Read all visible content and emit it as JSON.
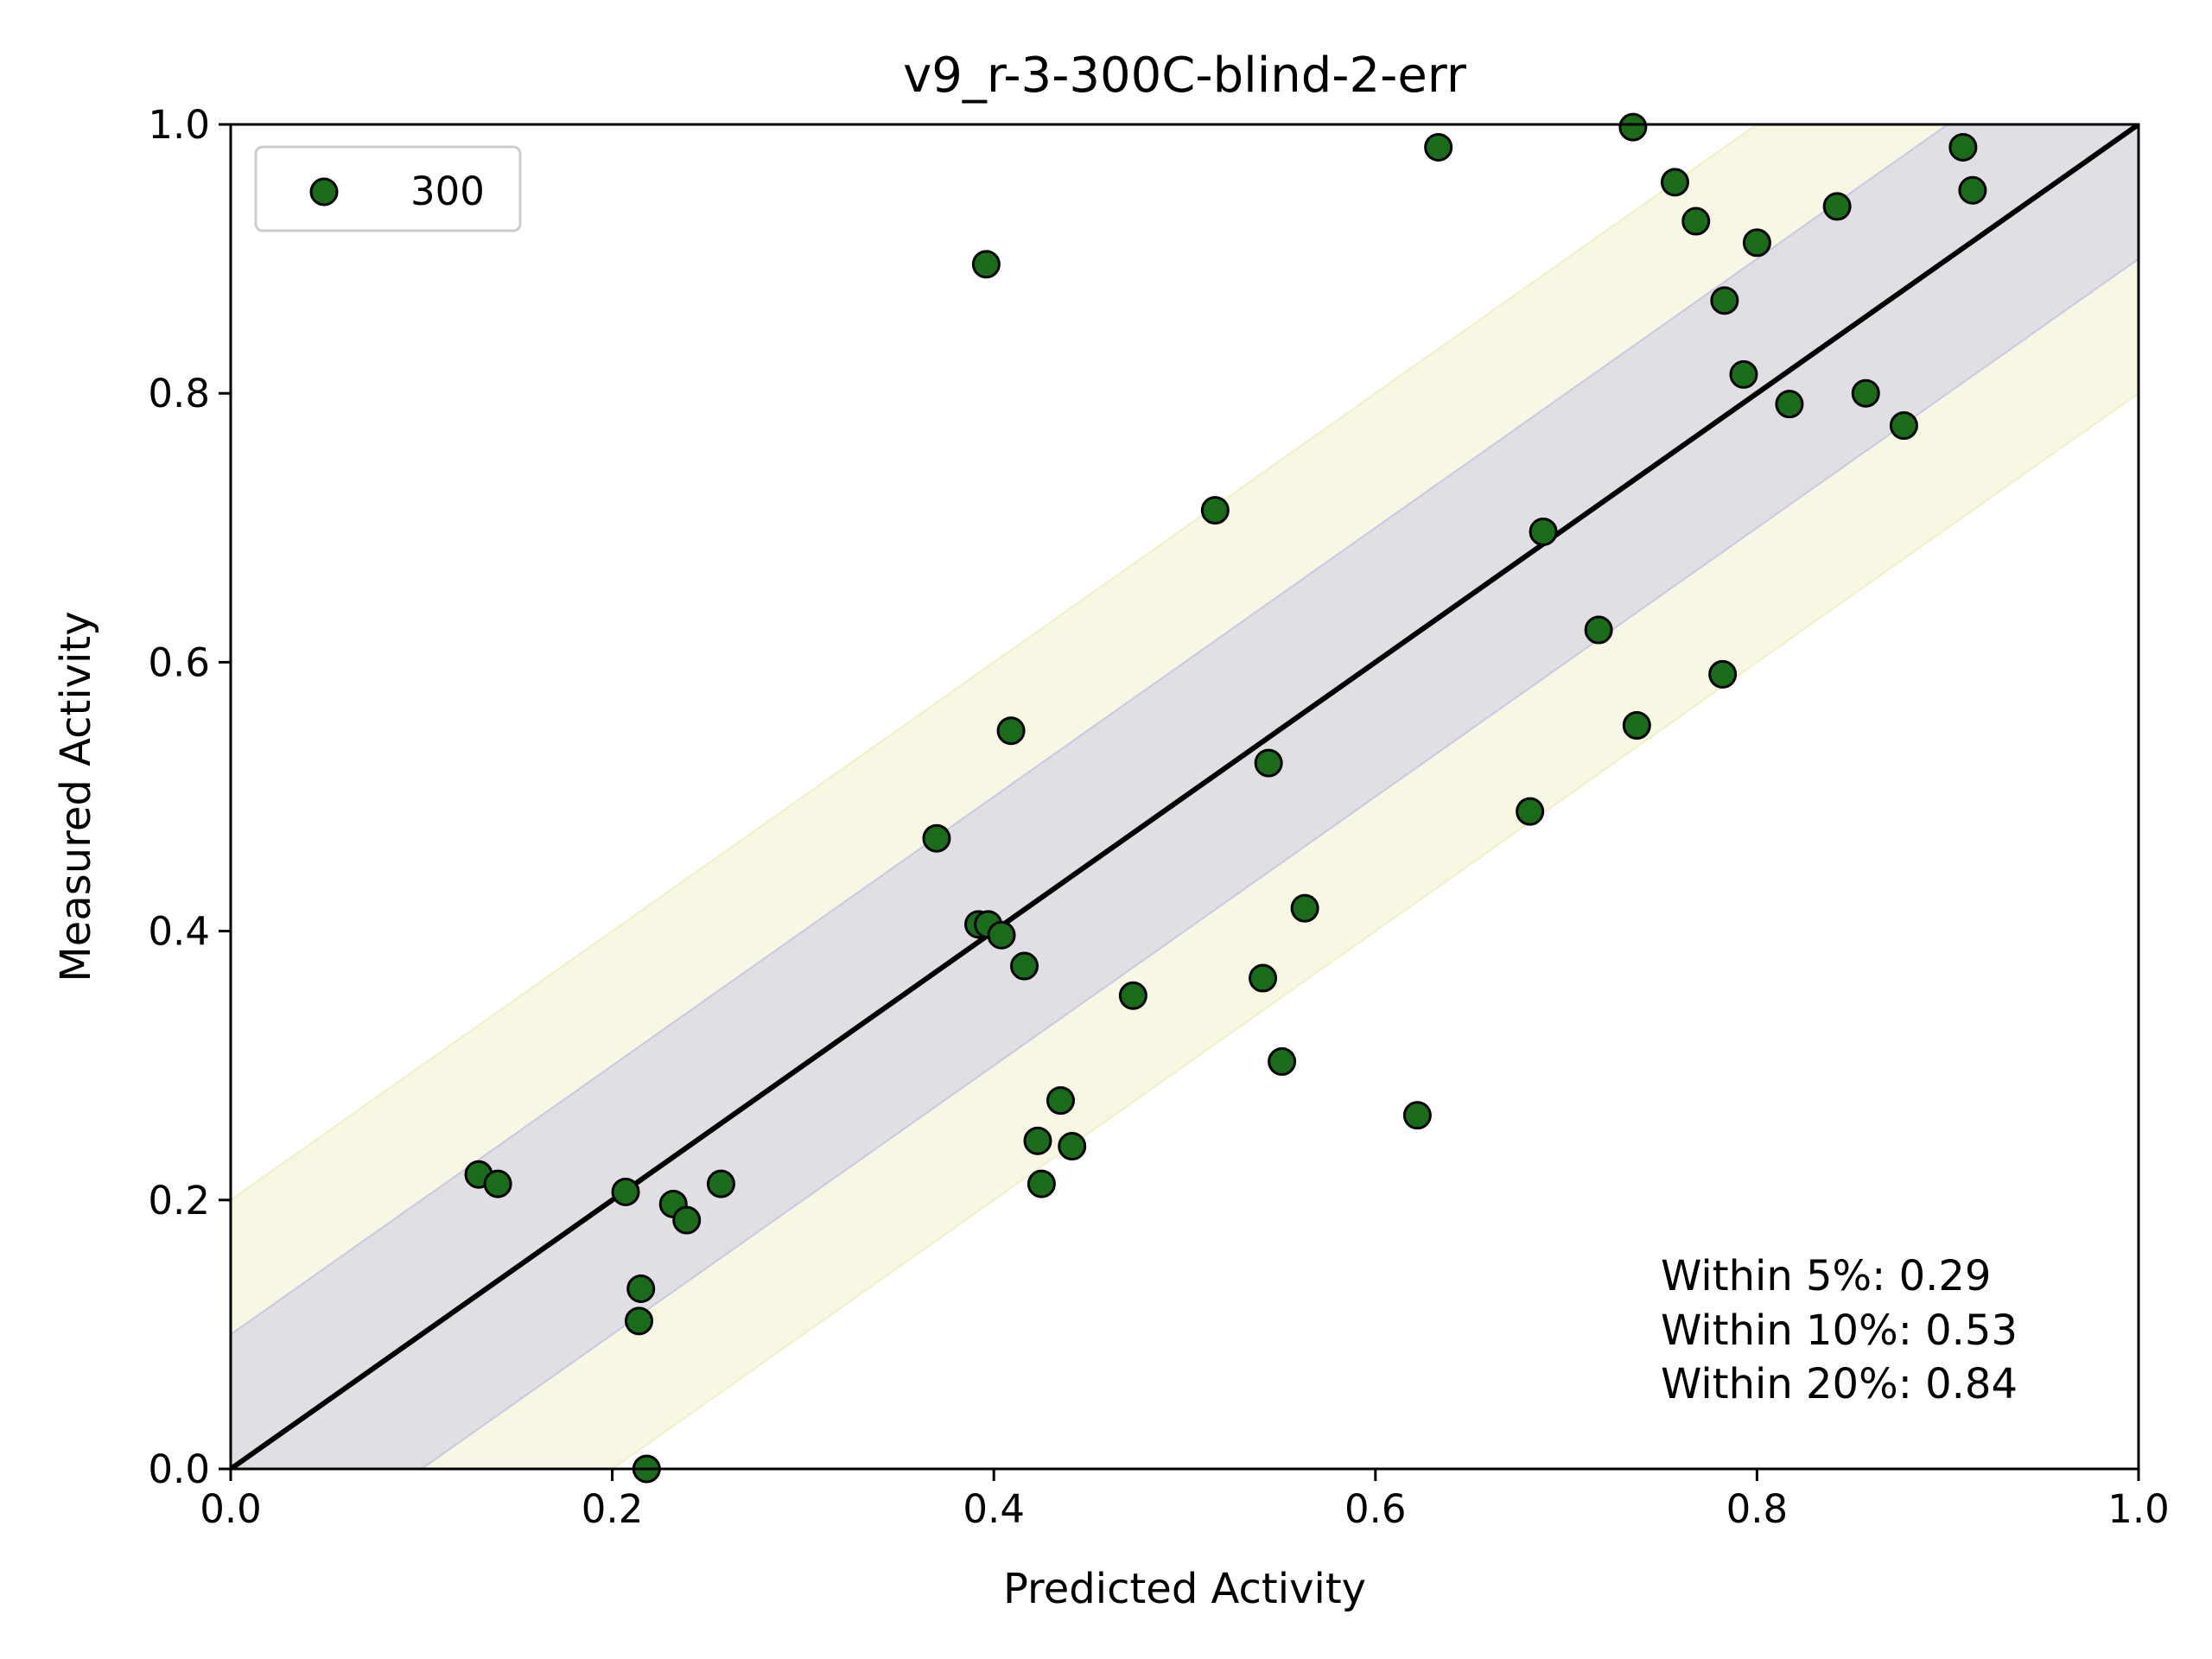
{
  "chart_data": {
    "type": "scatter",
    "title": "v9_r-3-300C-blind-2-err",
    "xlabel": "Predicted Activity",
    "ylabel": "Measured Activity",
    "xlim": [
      0.0,
      1.0
    ],
    "ylim": [
      0.0,
      1.0
    ],
    "xticks": [
      "0.0",
      "0.2",
      "0.4",
      "0.6",
      "0.8",
      "1.0"
    ],
    "yticks": [
      "0.0",
      "0.2",
      "0.4",
      "0.6",
      "0.8",
      "1.0"
    ],
    "grid": false,
    "legend": {
      "position": "top-left",
      "entries": [
        "300"
      ]
    },
    "reference_line": {
      "type": "y = x",
      "color": "#000000"
    },
    "bands": [
      {
        "within": 0.1,
        "color": "#c8c8e6"
      },
      {
        "within": 0.2,
        "color": "#f0f0c8"
      }
    ],
    "annotations": [
      "Within 5%: 0.29",
      "Within 10%: 0.53",
      "Within 20%: 0.84"
    ],
    "series": [
      {
        "name": "300",
        "color": "#1a6b1a",
        "edgecolor": "#000000",
        "points": [
          [
            0.13,
            0.219
          ],
          [
            0.14,
            0.212
          ],
          [
            0.207,
            0.206
          ],
          [
            0.215,
            0.134
          ],
          [
            0.214,
            0.11
          ],
          [
            0.218,
            0.0
          ],
          [
            0.232,
            0.197
          ],
          [
            0.239,
            0.185
          ],
          [
            0.257,
            0.212
          ],
          [
            0.37,
            0.469
          ],
          [
            0.392,
            0.405
          ],
          [
            0.397,
            0.405
          ],
          [
            0.404,
            0.397
          ],
          [
            0.409,
            0.549
          ],
          [
            0.416,
            0.374
          ],
          [
            0.396,
            0.896
          ],
          [
            0.423,
            0.244
          ],
          [
            0.425,
            0.212
          ],
          [
            0.435,
            0.274
          ],
          [
            0.441,
            0.24
          ],
          [
            0.473,
            0.352
          ],
          [
            0.516,
            0.713
          ],
          [
            0.541,
            0.365
          ],
          [
            0.544,
            0.525
          ],
          [
            0.551,
            0.303
          ],
          [
            0.563,
            0.417
          ],
          [
            0.622,
            0.263
          ],
          [
            0.633,
            0.983
          ],
          [
            0.681,
            0.489
          ],
          [
            0.688,
            0.697
          ],
          [
            0.717,
            0.624
          ],
          [
            0.735,
            0.998
          ],
          [
            0.737,
            0.553
          ],
          [
            0.757,
            0.957
          ],
          [
            0.768,
            0.928
          ],
          [
            0.782,
            0.591
          ],
          [
            0.783,
            0.869
          ],
          [
            0.793,
            0.814
          ],
          [
            0.8,
            0.912
          ],
          [
            0.817,
            0.792
          ],
          [
            0.842,
            0.939
          ],
          [
            0.857,
            0.8
          ],
          [
            0.877,
            0.776
          ],
          [
            0.908,
            0.983
          ],
          [
            0.913,
            0.951
          ]
        ]
      }
    ]
  }
}
